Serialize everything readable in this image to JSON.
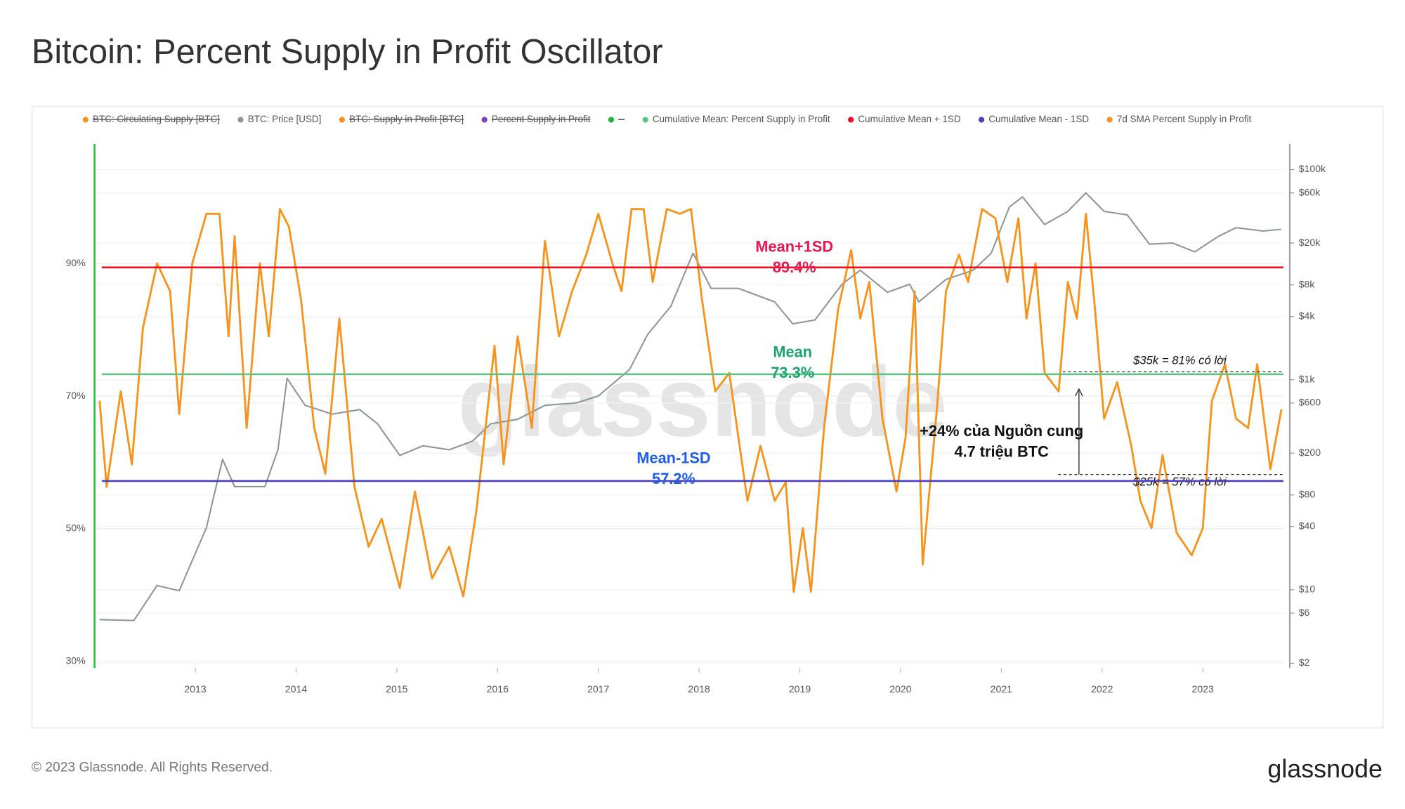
{
  "chart_data": {
    "type": "line",
    "title": "Bitcoin: Percent Supply in Profit Oscillator",
    "watermark": "glassnode",
    "xlim": [
      2012.0,
      2023.8
    ],
    "xticks": [
      2013,
      2014,
      2015,
      2016,
      2017,
      2018,
      2019,
      2020,
      2021,
      2022,
      2023
    ],
    "ylim": [
      29,
      108
    ],
    "yticks": [
      {
        "value": 30,
        "label": "30%"
      },
      {
        "value": 50,
        "label": "50%"
      },
      {
        "value": 70,
        "label": "70%"
      },
      {
        "value": 90,
        "label": "90%"
      }
    ],
    "y2_log": true,
    "y2lim": [
      1.8,
      175000
    ],
    "y2ticks": [
      {
        "value": 2,
        "label": "$2"
      },
      {
        "value": 6,
        "label": "$6"
      },
      {
        "value": 10,
        "label": "$10"
      },
      {
        "value": 40,
        "label": "$40"
      },
      {
        "value": 80,
        "label": "$80"
      },
      {
        "value": 200,
        "label": "$200"
      },
      {
        "value": 600,
        "label": "$600"
      },
      {
        "value": 1000,
        "label": "$1k"
      },
      {
        "value": 4000,
        "label": "$4k"
      },
      {
        "value": 8000,
        "label": "$8k"
      },
      {
        "value": 20000,
        "label": "$20k"
      },
      {
        "value": 60000,
        "label": "$60k"
      },
      {
        "value": 100000,
        "label": "$100k"
      }
    ],
    "grid": true,
    "series": [
      {
        "name": "BTC: Circulating Supply [BTC]",
        "color": "#f7931a",
        "hidden": true
      },
      {
        "name": "BTC: Price [USD]",
        "color": "#8a9699",
        "axis": "y2",
        "x": [
          2012.05,
          2012.39,
          2012.62,
          2012.84,
          2013.11,
          2013.27,
          2013.39,
          2013.69,
          2013.82,
          2013.91,
          2014.09,
          2014.36,
          2014.63,
          2014.81,
          2015.03,
          2015.26,
          2015.52,
          2015.75,
          2015.93,
          2016.2,
          2016.47,
          2016.78,
          2017.0,
          2017.31,
          2017.49,
          2017.72,
          2017.94,
          2018.12,
          2018.39,
          2018.75,
          2018.93,
          2019.15,
          2019.42,
          2019.6,
          2019.87,
          2020.09,
          2020.18,
          2020.45,
          2020.72,
          2020.9,
          2021.08,
          2021.21,
          2021.43,
          2021.66,
          2021.84,
          2022.02,
          2022.25,
          2022.47,
          2022.7,
          2022.92,
          2023.15,
          2023.33,
          2023.6,
          2023.78
        ],
        "values": [
          5.2,
          5.1,
          11,
          9.8,
          39,
          175,
          96,
          96,
          215,
          1030,
          570,
          470,
          520,
          380,
          190,
          235,
          215,
          260,
          380,
          420,
          570,
          600,
          700,
          1250,
          2700,
          5000,
          16000,
          7400,
          7400,
          5500,
          3400,
          3700,
          8100,
          11000,
          6800,
          8100,
          5500,
          9000,
          11000,
          16000,
          44000,
          55000,
          30000,
          40000,
          60000,
          40000,
          37000,
          19500,
          20000,
          16500,
          23000,
          28000,
          26000,
          27000
        ]
      },
      {
        "name": "BTC: Supply in Profit [BTC]",
        "color": "#f7931a",
        "hidden": true
      },
      {
        "name": "Percent Supply in Profit",
        "color": "#7b3fbf",
        "hidden": true
      },
      {
        "name": "--",
        "color": "#22b33a",
        "hidden": true
      },
      {
        "name": "Cumulative Mean: Percent Supply in Profit",
        "color": "#5bc47e",
        "value": 73.3,
        "value_label": "73.3%",
        "annotation": "Mean",
        "annotation_color": "#1aa56e"
      },
      {
        "name": "Cumulative Mean + 1SD",
        "color": "#e8101e",
        "value": 89.4,
        "value_label": "89.4%",
        "annotation": "Mean+1SD",
        "annotation_color": "#e8174f"
      },
      {
        "name": "Cumulative Mean - 1SD",
        "color": "#4b3fbf",
        "value": 57.2,
        "value_label": "57.2%",
        "annotation": "Mean-1SD",
        "annotation_color": "#1f5ee8"
      },
      {
        "name": "7d SMA Percent Supply in Profit",
        "color": "#f7931a",
        "x": [
          2012.05,
          2012.12,
          2012.26,
          2012.37,
          2012.48,
          2012.62,
          2012.75,
          2012.84,
          2012.97,
          2013.11,
          2013.24,
          2013.33,
          2013.39,
          2013.51,
          2013.64,
          2013.73,
          2013.84,
          2013.93,
          2014.05,
          2014.18,
          2014.29,
          2014.43,
          2014.58,
          2014.72,
          2014.85,
          2015.03,
          2015.18,
          2015.35,
          2015.52,
          2015.66,
          2015.79,
          2015.97,
          2016.06,
          2016.2,
          2016.34,
          2016.47,
          2016.61,
          2016.74,
          2016.88,
          2017.0,
          2017.14,
          2017.23,
          2017.33,
          2017.45,
          2017.54,
          2017.68,
          2017.81,
          2017.92,
          2018.03,
          2018.16,
          2018.3,
          2018.48,
          2018.61,
          2018.75,
          2018.86,
          2018.94,
          2019.03,
          2019.11,
          2019.24,
          2019.38,
          2019.51,
          2019.6,
          2019.69,
          2019.82,
          2019.96,
          2020.05,
          2020.14,
          2020.22,
          2020.36,
          2020.45,
          2020.58,
          2020.67,
          2020.81,
          2020.94,
          2021.06,
          2021.17,
          2021.25,
          2021.34,
          2021.43,
          2021.57,
          2021.66,
          2021.75,
          2021.84,
          2021.93,
          2022.02,
          2022.15,
          2022.29,
          2022.38,
          2022.49,
          2022.6,
          2022.74,
          2022.89,
          2023.0,
          2023.09,
          2023.22,
          2023.33,
          2023.45,
          2023.54,
          2023.67,
          2023.78
        ],
        "values": [
          69.3,
          56.3,
          70.7,
          59.7,
          80.3,
          90,
          85.8,
          67.3,
          90,
          97.5,
          97.5,
          79,
          94.1,
          65.2,
          90,
          79,
          98.2,
          95.5,
          84.5,
          65.2,
          58.3,
          81.7,
          56.3,
          47.3,
          51.5,
          41.1,
          55.6,
          42.5,
          47.3,
          39.8,
          52.8,
          77.6,
          59.7,
          79,
          65.2,
          93.4,
          79,
          85.8,
          91.3,
          97.5,
          90,
          85.8,
          98.2,
          98.2,
          87.2,
          98.2,
          97.5,
          98.2,
          84.5,
          70.7,
          73.5,
          54.2,
          62.5,
          54.2,
          57,
          40.5,
          50.1,
          40.5,
          65.2,
          83.1,
          92,
          81.7,
          87.2,
          66.6,
          55.6,
          63.8,
          85.8,
          44.6,
          68,
          85.8,
          91.3,
          87.2,
          98.2,
          96.8,
          87.2,
          96.8,
          81.7,
          90,
          73.5,
          70.7,
          87.2,
          81.7,
          97.5,
          83.1,
          66.6,
          72.1,
          62.5,
          54.2,
          50.1,
          61.1,
          49.4,
          46,
          50.1,
          69.3,
          74.8,
          66.6,
          65.2,
          74.8,
          59,
          68
        ]
      }
    ],
    "annotations": {
      "upper_note": "$35k = 81% có lời",
      "lower_note": "$25k = 57% có lời",
      "gap_note": [
        "+24% của Nguồn cung",
        "4.7 triệu BTC"
      ]
    }
  },
  "footer": {
    "copyright": "© 2023 Glassnode. All Rights Reserved.",
    "logo": "glassnode"
  }
}
